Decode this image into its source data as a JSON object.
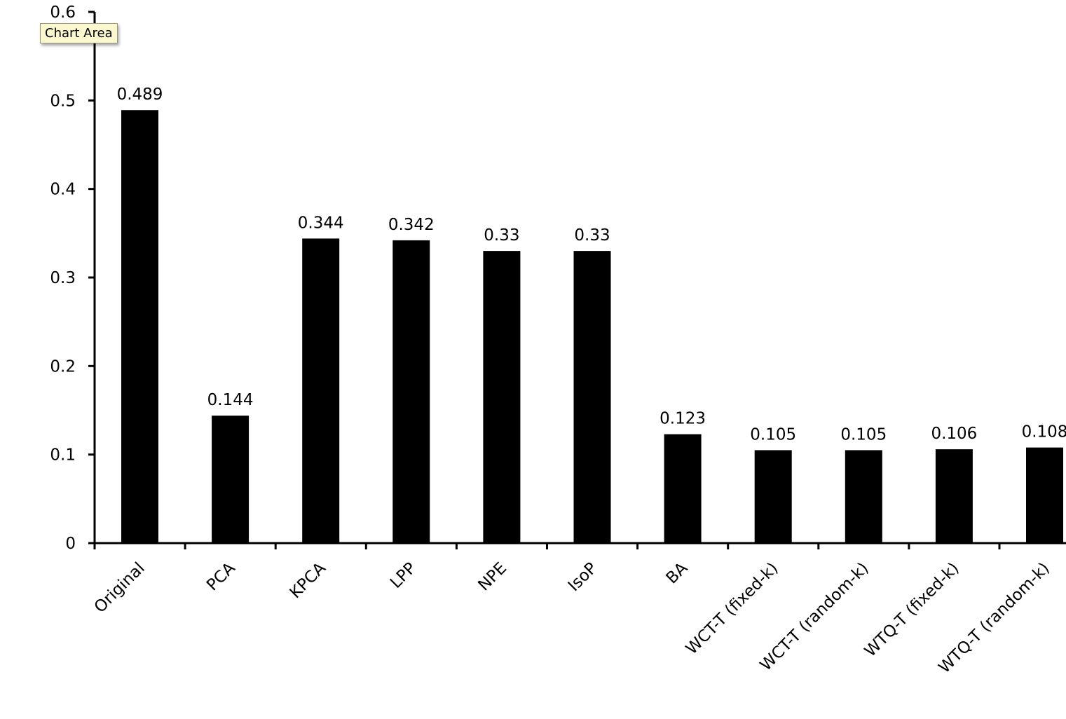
{
  "tooltip": {
    "label": "Chart Area"
  },
  "colors": {
    "bar": "#000000",
    "axis": "#000000",
    "background": "#ffffff",
    "tooltip_bg": "#fbf8cf"
  },
  "chart_data": {
    "type": "bar",
    "title": "",
    "xlabel": "",
    "ylabel": "",
    "ylim": [
      0,
      0.6
    ],
    "yticks": [
      "0",
      "0.1",
      "0.2",
      "0.3",
      "0.4",
      "0.5",
      "0.6"
    ],
    "grid": false,
    "legend": "none",
    "categories": [
      "Original",
      "PCA",
      "KPCA",
      "LPP",
      "NPE",
      "IsoP",
      "BA",
      "WCT-T (fixed-k)",
      "WCT-T (random-k)",
      "WTQ-T (fixed-k)",
      "WTQ-T (random-k)"
    ],
    "values": [
      0.489,
      0.144,
      0.344,
      0.342,
      0.33,
      0.33,
      0.123,
      0.105,
      0.105,
      0.106,
      0.108
    ],
    "data_labels": [
      "0.489",
      "0.144",
      "0.344",
      "0.342",
      "0.33",
      "0.33",
      "0.123",
      "0.105",
      "0.105",
      "0.106",
      "0.108"
    ]
  }
}
